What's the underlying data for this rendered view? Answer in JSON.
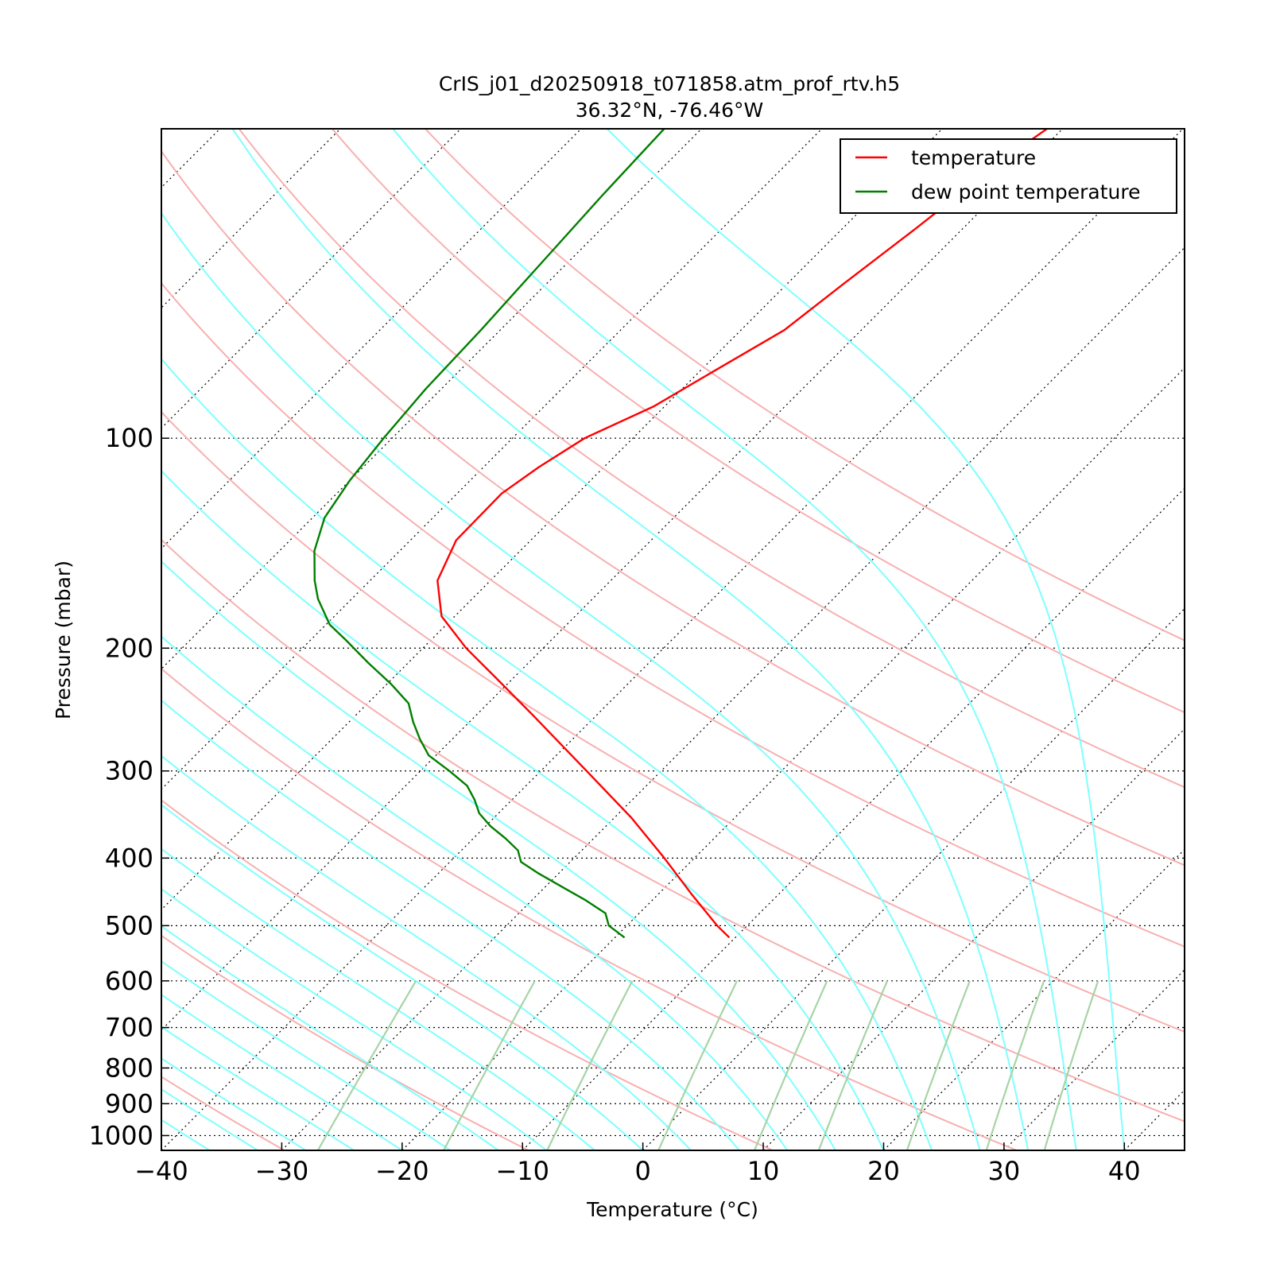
{
  "chart_data": {
    "type": "line",
    "title": "CrIS_j01_d20250918_t071858.atm_prof_rtv.h5",
    "subtitle": "36.32°N, -76.46°W",
    "xlabel": "Temperature (°C)",
    "ylabel": "Pressure (mbar)",
    "xlim": [
      -40,
      45
    ],
    "ylim": [
      1050,
      36
    ],
    "y_scale": "log",
    "skew": true,
    "x_ticks": [
      "−40",
      "−30",
      "−20",
      "−10",
      "0",
      "10",
      "20",
      "30",
      "40"
    ],
    "x_tick_values": [
      -40,
      -30,
      -20,
      -10,
      0,
      10,
      20,
      30,
      40
    ],
    "y_ticks": [
      "100",
      "200",
      "300",
      "400",
      "500",
      "600",
      "700",
      "800",
      "900",
      "1000"
    ],
    "y_tick_values": [
      100,
      200,
      300,
      400,
      500,
      600,
      700,
      800,
      900,
      1000
    ],
    "grid": true,
    "legend_position": "top-right",
    "colors": {
      "temperature": "#ff0000",
      "dewpoint": "#007f00",
      "dry_adiabat": "#f8b0b0",
      "moist_adiabat": "#7fffff",
      "mixing_ratio": "#a6d4a6",
      "isotherm": "#000000"
    },
    "series": [
      {
        "name": "temperature",
        "pressure": [
          520,
          500,
          450,
          400,
          350,
          300,
          250,
          220,
          200,
          180,
          160,
          140,
          120,
          110,
          100,
          90,
          80,
          70,
          60,
          50,
          40,
          36
        ],
        "temperature": [
          -10.5,
          -12.5,
          -17.3,
          -22.5,
          -28.6,
          -36.2,
          -45.2,
          -51.6,
          -56.4,
          -61.1,
          -64.4,
          -66.2,
          -66.3,
          -65.4,
          -64.0,
          -60.9,
          -58.8,
          -56.4,
          -55.3,
          -53.9,
          -52.4,
          -51.3
        ]
      },
      {
        "name": "dew point temperature",
        "pressure": [
          520,
          500,
          480,
          460,
          440,
          420,
          405,
          390,
          375,
          360,
          345,
          330,
          315,
          300,
          285,
          270,
          255,
          240,
          225,
          210,
          195,
          185,
          170,
          160,
          145,
          130,
          115,
          100,
          85,
          70,
          55,
          45,
          36
        ],
        "temperature": [
          -19.2,
          -21.5,
          -22.8,
          -25.5,
          -28.6,
          -31.8,
          -34.1,
          -35.3,
          -37.3,
          -39.6,
          -41.6,
          -43.1,
          -44.9,
          -47.6,
          -50.6,
          -52.7,
          -54.7,
          -56.6,
          -59.7,
          -63.3,
          -67.0,
          -69.7,
          -72.8,
          -74.6,
          -77.1,
          -79.0,
          -80.0,
          -80.7,
          -81.3,
          -81.6,
          -82.2,
          -82.7,
          -83.1
        ]
      }
    ],
    "reference_lines": {
      "isotherms_c": [
        -150,
        -140,
        -130,
        -120,
        -110,
        -100,
        -90,
        -80,
        -70,
        -60,
        -50,
        -40,
        -30,
        -20,
        -10,
        0,
        10,
        20,
        30,
        40
      ],
      "dry_adiabats_k": [
        220,
        240,
        260,
        280,
        300,
        320,
        340,
        360,
        380,
        400,
        420,
        440
      ],
      "moist_adiabats_base_c": [
        -36,
        -32,
        -28,
        -24,
        -20,
        -16,
        -12,
        -8,
        -4,
        0,
        4,
        8,
        12,
        16,
        20,
        24,
        28,
        32,
        36,
        40
      ],
      "mixing_ratios_gkg": [
        0.4,
        1,
        2,
        4,
        7,
        10,
        16,
        24,
        32
      ]
    }
  },
  "legend": {
    "items": [
      {
        "label": "temperature",
        "color": "#ff0000"
      },
      {
        "label": "dew point temperature",
        "color": "#007f00"
      }
    ]
  }
}
